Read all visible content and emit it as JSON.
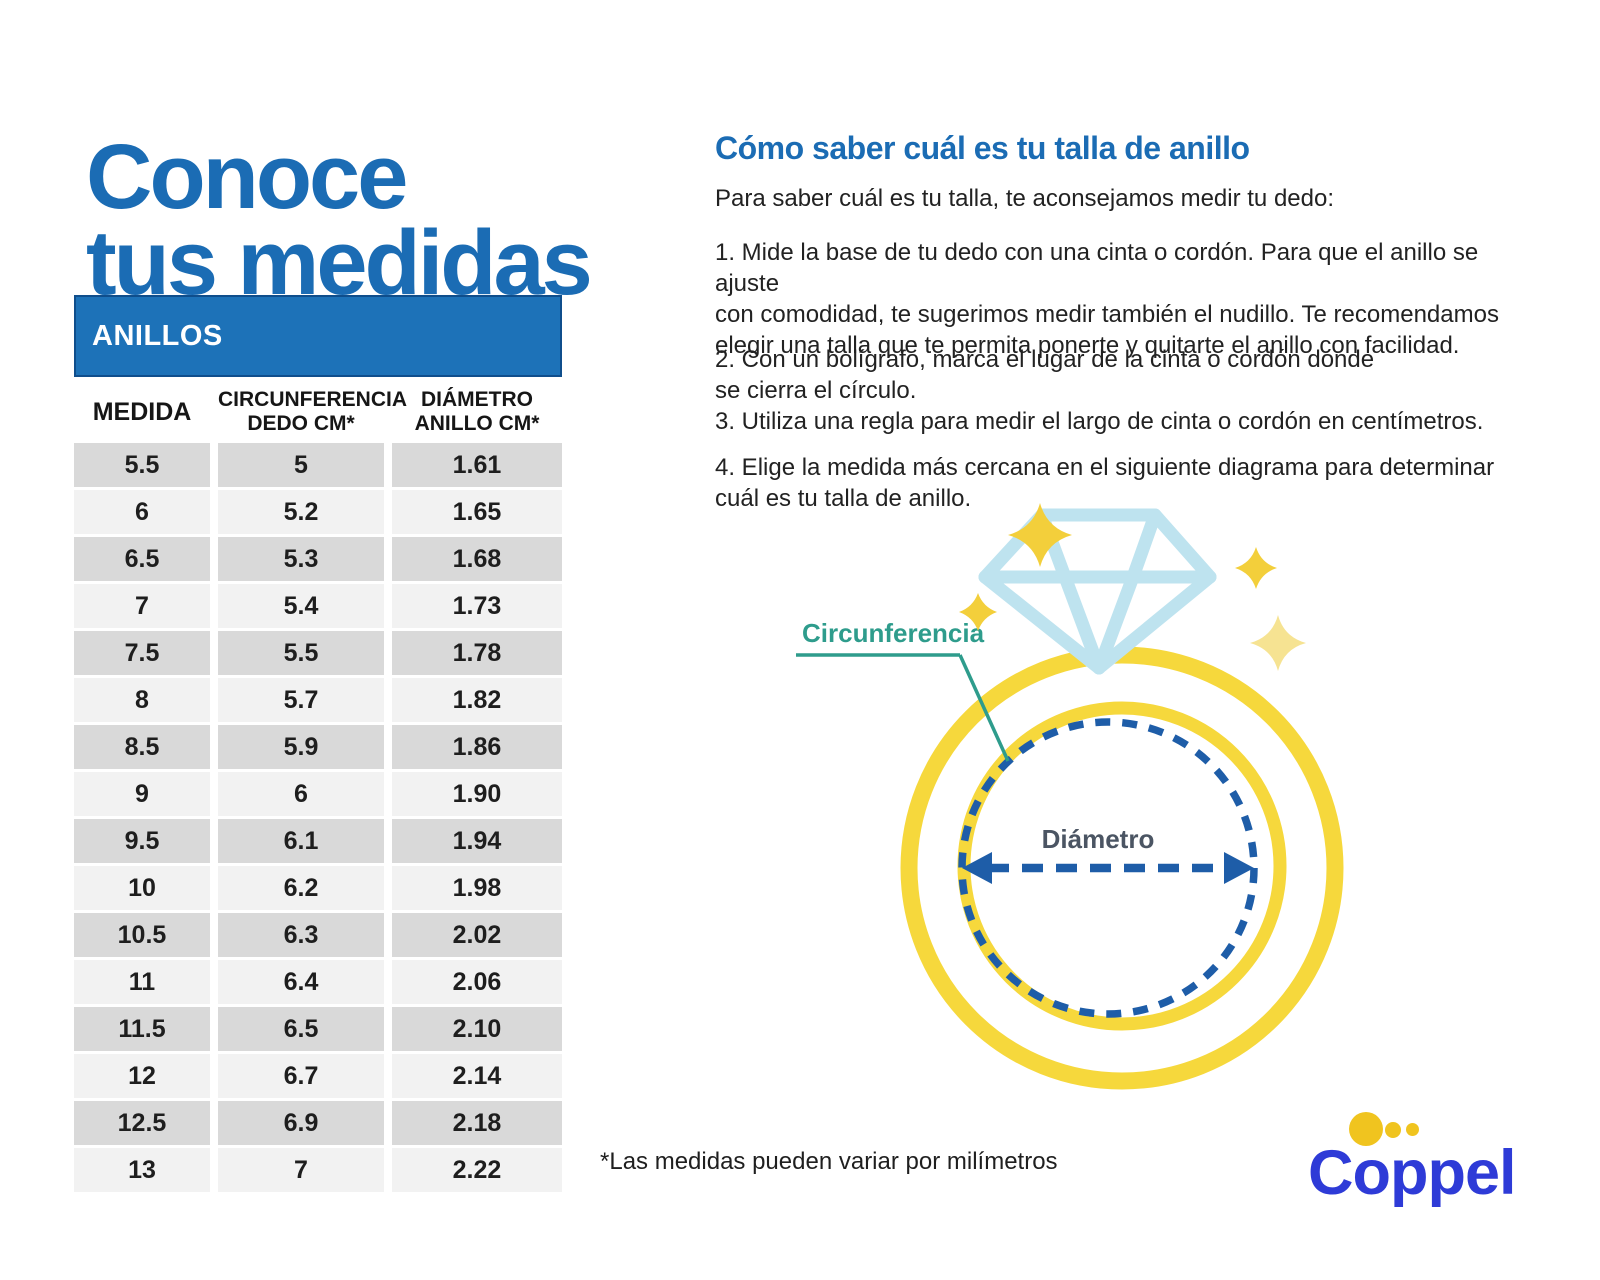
{
  "page": {
    "title_line1": "Conoce",
    "title_line2": "tus medidas"
  },
  "table": {
    "title": "ANILLOS",
    "columns": [
      "MEDIDA",
      "CIRCUNFERENCIA\nDEDO CM*",
      "DIÁMETRO\nANILLO CM*"
    ],
    "rows": [
      [
        "5.5",
        "5",
        "1.61"
      ],
      [
        "6",
        "5.2",
        "1.65"
      ],
      [
        "6.5",
        "5.3",
        "1.68"
      ],
      [
        "7",
        "5.4",
        "1.73"
      ],
      [
        "7.5",
        "5.5",
        "1.78"
      ],
      [
        "8",
        "5.7",
        "1.82"
      ],
      [
        "8.5",
        "5.9",
        "1.86"
      ],
      [
        "9",
        "6",
        "1.90"
      ],
      [
        "9.5",
        "6.1",
        "1.94"
      ],
      [
        "10",
        "6.2",
        "1.98"
      ],
      [
        "10.5",
        "6.3",
        "2.02"
      ],
      [
        "11",
        "6.4",
        "2.06"
      ],
      [
        "11.5",
        "6.5",
        "2.10"
      ],
      [
        "12",
        "6.7",
        "2.14"
      ],
      [
        "12.5",
        "6.9",
        "2.18"
      ],
      [
        "13",
        "7",
        "2.22"
      ]
    ]
  },
  "instructions": {
    "heading": "Cómo saber cuál es tu talla de anillo",
    "intro": "Para saber cuál es tu talla, te aconsejamos medir tu dedo:",
    "step1": "1. Mide la base de tu dedo con una cinta o cordón. Para que el anillo se ajuste\ncon comodidad, te sugerimos medir también el nudillo. Te recomendamos\nelegir una talla que te permita ponerte y quitarte el anillo con facilidad.",
    "step2": "2. Con un bolígrafo, marca el lugar de la cinta o cordón donde\nse cierra el círculo.",
    "step3": "3. Utiliza una regla para medir el largo de cinta o cordón en centímetros.",
    "step4": "4. Elige la medida más cercana en el siguiente diagrama para determinar\ncuál es tu talla de anillo."
  },
  "diagram": {
    "circumference_label": "Circunferencia",
    "diameter_label": "Diámetro"
  },
  "footnote": "*Las medidas pueden variar por milímetros",
  "logo": {
    "text": "Coppel"
  },
  "colors": {
    "title_blue": "#1b6cb4",
    "bar_blue": "#1d72b8",
    "coppel_blue": "#2e3bd7",
    "dot_yellow": "#f0c41f",
    "ring_yellow": "#f6d83c",
    "diamond_blue": "#bee3ef",
    "teal": "#2e9c8c",
    "dash_blue": "#1e5da8",
    "row_dark": "#d9d9d9",
    "row_light": "#f2f2f2"
  }
}
